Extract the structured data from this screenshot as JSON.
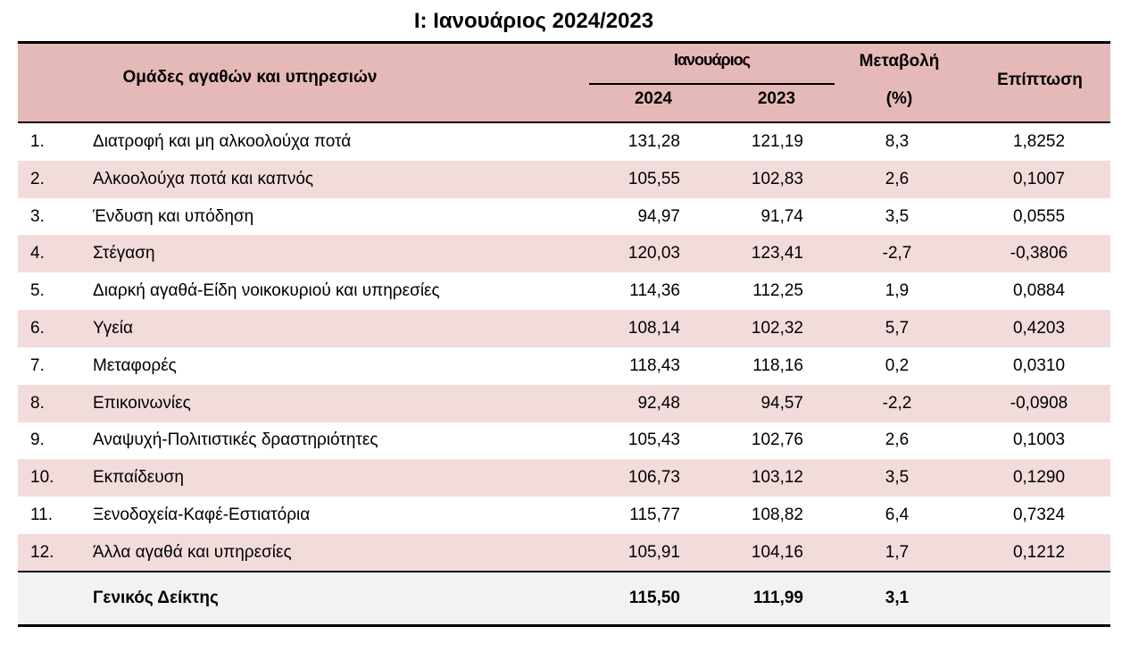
{
  "title": "I: Ιανουάριος 2024/2023",
  "header": {
    "group_col": "Ομάδες αγαθών και υπηρεσιών",
    "january": "Ιανουάριος",
    "year_current": "2024",
    "year_previous": "2023",
    "change_line1": "Μεταβολή",
    "change_line2": "(%)",
    "impact": "Επίπτωση"
  },
  "rows": [
    {
      "num": "1.",
      "name": "Διατροφή και μη αλκοολούχα ποτά",
      "v2024": "131,28",
      "v2023": "121,19",
      "change": "8,3",
      "impact": "1,8252"
    },
    {
      "num": "2.",
      "name": "Αλκοολούχα ποτά και καπνός",
      "v2024": "105,55",
      "v2023": "102,83",
      "change": "2,6",
      "impact": "0,1007"
    },
    {
      "num": "3.",
      "name": "Ένδυση και υπόδηση",
      "v2024": "94,97",
      "v2023": "91,74",
      "change": "3,5",
      "impact": "0,0555"
    },
    {
      "num": "4.",
      "name": "Στέγαση",
      "v2024": "120,03",
      "v2023": "123,41",
      "change": "-2,7",
      "impact": "-0,3806"
    },
    {
      "num": "5.",
      "name": "Διαρκή αγαθά-Είδη νοικοκυριού και υπηρεσίες",
      "v2024": "114,36",
      "v2023": "112,25",
      "change": "1,9",
      "impact": "0,0884"
    },
    {
      "num": "6.",
      "name": "Υγεία",
      "v2024": "108,14",
      "v2023": "102,32",
      "change": "5,7",
      "impact": "0,4203"
    },
    {
      "num": "7.",
      "name": "Μεταφορές",
      "v2024": "118,43",
      "v2023": "118,16",
      "change": "0,2",
      "impact": "0,0310"
    },
    {
      "num": "8.",
      "name": "Επικοινωνίες",
      "v2024": "92,48",
      "v2023": "94,57",
      "change": "-2,2",
      "impact": "-0,0908"
    },
    {
      "num": "9.",
      "name": "Αναψυχή-Πολιτιστικές δραστηριότητες",
      "v2024": "105,43",
      "v2023": "102,76",
      "change": "2,6",
      "impact": "0,1003"
    },
    {
      "num": "10.",
      "name": "Εκπαίδευση",
      "v2024": "106,73",
      "v2023": "103,12",
      "change": "3,5",
      "impact": "0,1290"
    },
    {
      "num": "11.",
      "name": "Ξενοδοχεία-Καφέ-Εστιατόρια",
      "v2024": "115,77",
      "v2023": "108,82",
      "change": "6,4",
      "impact": "0,7324"
    },
    {
      "num": "12.",
      "name": "Άλλα αγαθά και υπηρεσίες",
      "v2024": "105,91",
      "v2023": "104,16",
      "change": "1,7",
      "impact": "0,1212"
    }
  ],
  "total": {
    "name": "Γενικός Δείκτης",
    "v2024": "115,50",
    "v2023": "111,99",
    "change": "3,1"
  },
  "colors": {
    "header_bg": "#e6b9b9",
    "alt_row_bg": "#f2dcdb",
    "total_bg": "#f2f2f2"
  }
}
